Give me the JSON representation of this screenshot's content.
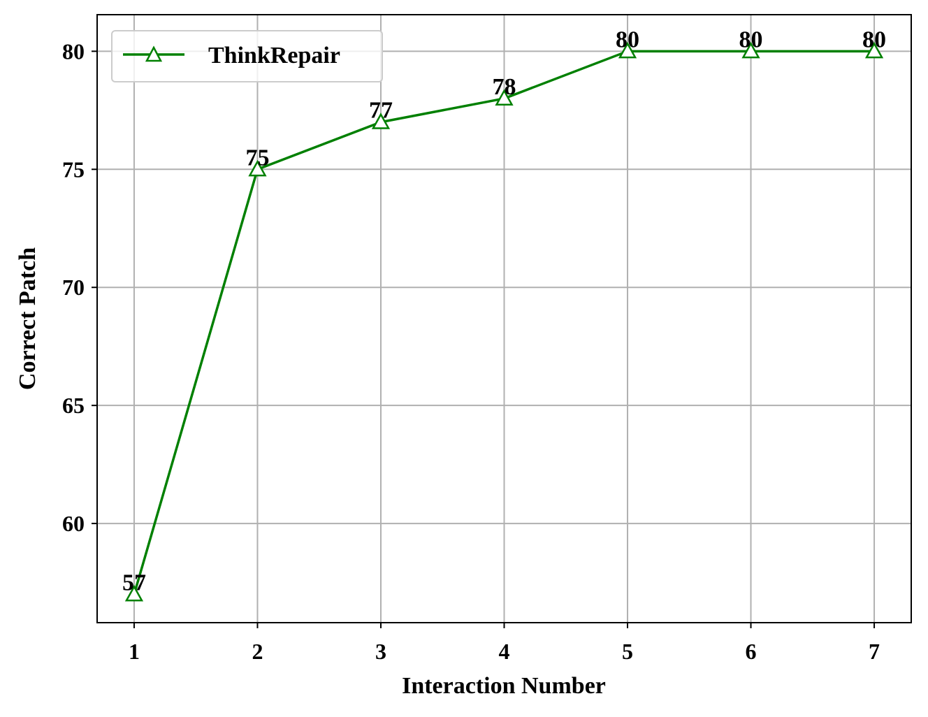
{
  "chart_data": {
    "type": "line",
    "x": [
      1,
      2,
      3,
      4,
      5,
      6,
      7
    ],
    "series": [
      {
        "name": "ThinkRepair",
        "values": [
          57,
          75,
          77,
          78,
          80,
          80,
          80
        ],
        "color": "#008000",
        "marker": "triangle-open"
      }
    ],
    "data_labels": [
      "57",
      "75",
      "77",
      "78",
      "80",
      "80",
      "80"
    ],
    "xlabel": "Interaction Number",
    "ylabel": "Correct Patch",
    "xticks": [
      "1",
      "2",
      "3",
      "4",
      "5",
      "6",
      "7"
    ],
    "yticks": [
      "60",
      "65",
      "70",
      "75",
      "80"
    ],
    "xlim": [
      0.7,
      7.3
    ],
    "ylim": [
      55.8,
      81.55
    ],
    "grid": true,
    "legend_position": "top-left"
  }
}
